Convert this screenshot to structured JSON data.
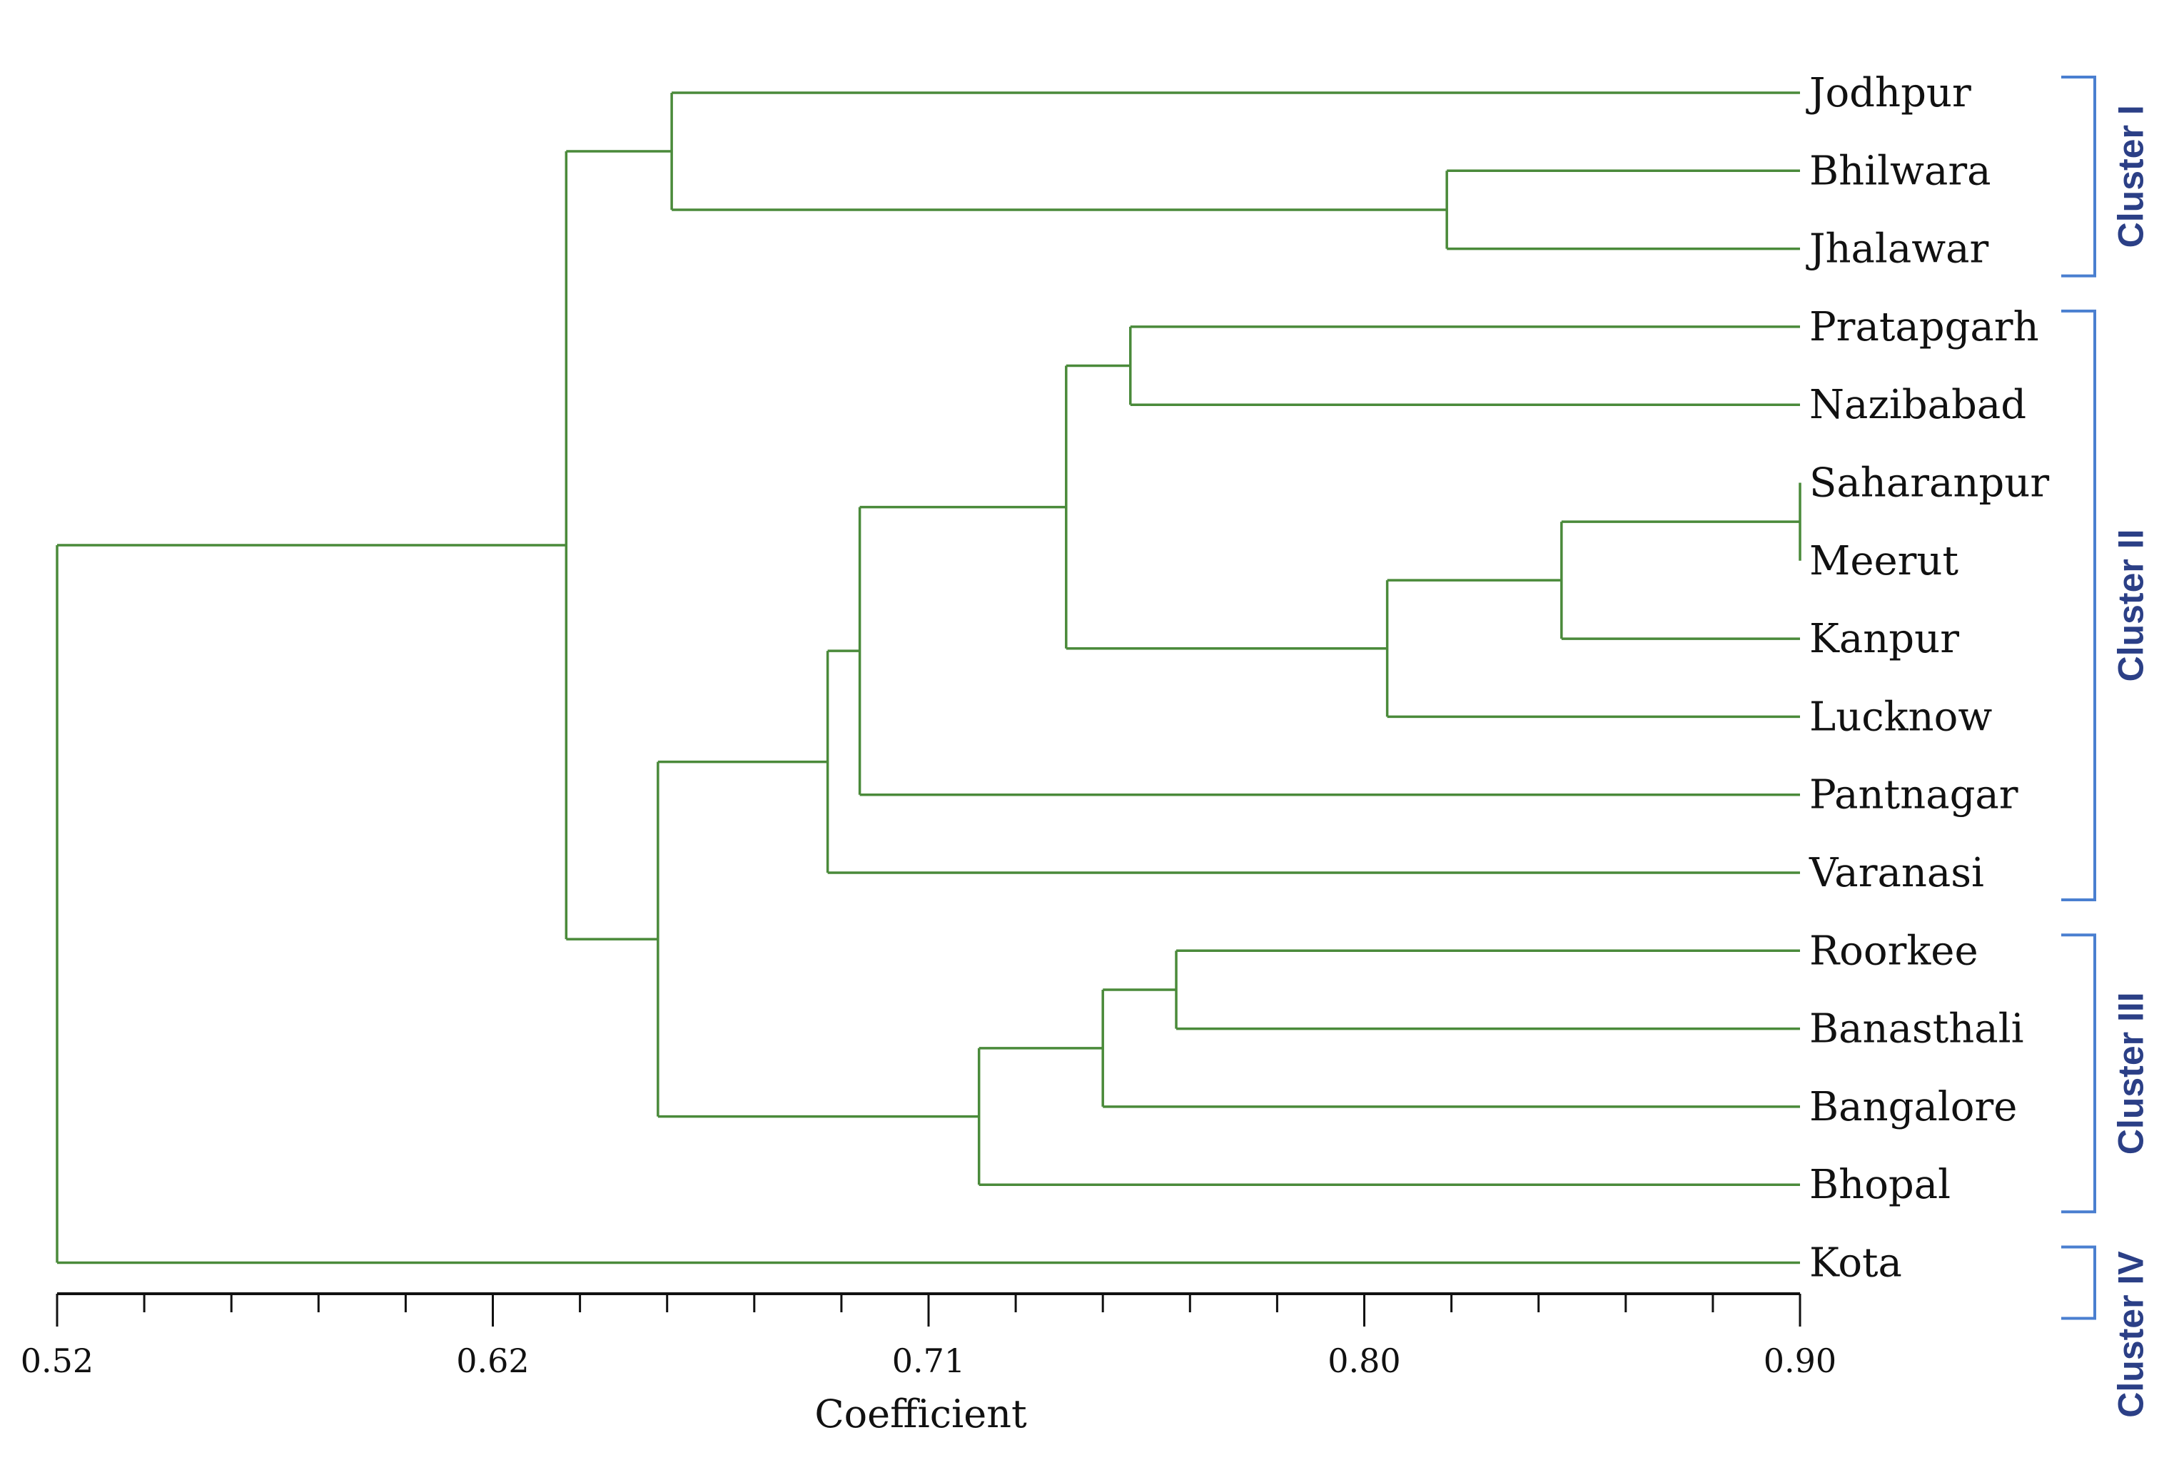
{
  "chart_data": {
    "type": "dendrogram",
    "xlabel": "Coefficient",
    "xlim": [
      0.52,
      0.9
    ],
    "ticks": [
      "0.52",
      "0.62",
      "0.71",
      "0.80",
      "0.90"
    ],
    "leaves": [
      "Jodhpur",
      "Bhilwara",
      "Jhalawar",
      "Pratapgarh",
      "Nazibabad",
      "Saharanpur",
      "Meerut",
      "Kanpur",
      "Lucknow",
      "Pantnagar",
      "Varanasi",
      "Roorkee",
      "Banasthali",
      "Bangalore",
      "Bhopal",
      "Kota"
    ],
    "merges": [
      {
        "id": "A",
        "children": [
          "Bhilwara",
          "Jhalawar"
        ],
        "height": 0.823
      },
      {
        "id": "B",
        "children": [
          "Jodhpur",
          "A"
        ],
        "height": 0.654
      },
      {
        "id": "C",
        "children": [
          "Pratapgarh",
          "Nazibabad"
        ],
        "height": 0.754
      },
      {
        "id": "D",
        "children": [
          "Saharanpur",
          "Meerut"
        ],
        "height": 0.9
      },
      {
        "id": "E",
        "children": [
          "D",
          "Kanpur"
        ],
        "height": 0.848
      },
      {
        "id": "F",
        "children": [
          "E",
          "Lucknow"
        ],
        "height": 0.81
      },
      {
        "id": "G",
        "children": [
          "C",
          "F"
        ],
        "height": 0.74
      },
      {
        "id": "H",
        "children": [
          "G",
          "Pantnagar"
        ],
        "height": 0.695
      },
      {
        "id": "I",
        "children": [
          "H",
          "Varanasi"
        ],
        "height": 0.688
      },
      {
        "id": "J",
        "children": [
          "Roorkee",
          "Banasthali"
        ],
        "height": 0.764
      },
      {
        "id": "K",
        "children": [
          "J",
          "Bangalore"
        ],
        "height": 0.748
      },
      {
        "id": "L",
        "children": [
          "K",
          "Bhopal"
        ],
        "height": 0.721
      },
      {
        "id": "M",
        "children": [
          "I",
          "L"
        ],
        "height": 0.651
      },
      {
        "id": "N",
        "children": [
          "B",
          "M"
        ],
        "height": 0.631
      },
      {
        "id": "O",
        "children": [
          "N",
          "Kota"
        ],
        "height": 0.52
      }
    ],
    "clusters": [
      {
        "label": "Cluster I",
        "first": 0,
        "last": 2
      },
      {
        "label": "Cluster II",
        "first": 3,
        "last": 10
      },
      {
        "label": "Cluster III",
        "first": 11,
        "last": 14
      },
      {
        "label": "Cluster IV",
        "first": 15,
        "last": 15
      }
    ],
    "colors": {
      "branch": "#4a8a3a",
      "bracket": "#4a7fd0",
      "cluster_text": "#2b3f86"
    }
  }
}
